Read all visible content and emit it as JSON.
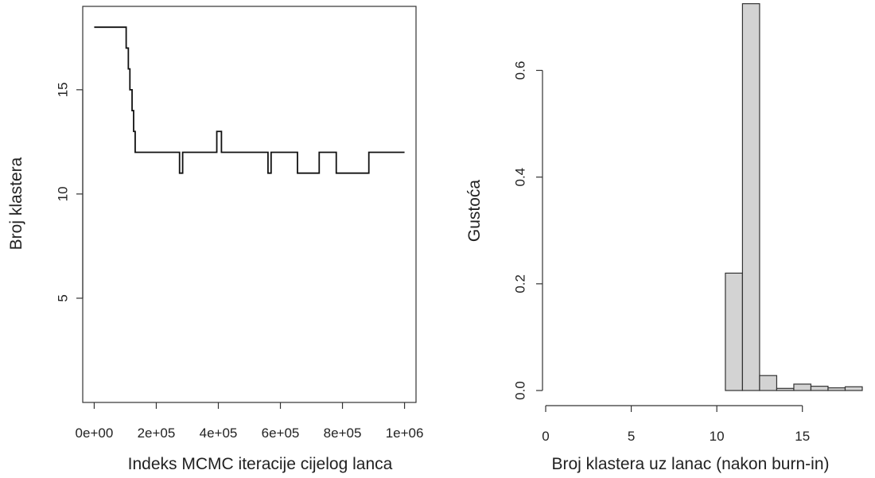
{
  "chart_data": [
    {
      "type": "line",
      "title": "",
      "xlabel": "Indeks MCMC iteracije cijelog lanca",
      "ylabel": "Broj klastera",
      "xlim": [
        -37000,
        1037000
      ],
      "ylim": [
        0,
        19
      ],
      "x_ticks": [
        0,
        200000,
        400000,
        600000,
        800000,
        1000000
      ],
      "x_tick_labels": [
        "0e+00",
        "2e+05",
        "4e+05",
        "6e+05",
        "8e+05",
        "1e+06"
      ],
      "y_ticks": [
        5,
        10,
        15
      ],
      "y_tick_labels": [
        "5",
        "10",
        "15"
      ],
      "box": true,
      "series": [
        {
          "step": true,
          "x": [
            0,
            103000,
            110000,
            115000,
            122000,
            127000,
            132000,
            275000,
            285000,
            395000,
            410000,
            560000,
            570000,
            655000,
            725000,
            780000,
            885000,
            1000000
          ],
          "y": [
            18,
            17,
            16,
            15,
            14,
            13,
            12,
            11,
            12,
            13,
            12,
            11,
            12,
            11,
            12,
            11,
            12,
            12
          ]
        }
      ]
    },
    {
      "type": "bar",
      "subtype": "histogram",
      "title": "",
      "xlabel": "Broj klastera uz lanac (nakon burn-in)",
      "ylabel": "Gustoća",
      "xlim": [
        0,
        18.5
      ],
      "ylim": [
        0,
        0.72
      ],
      "x_ticks": [
        0,
        5,
        10,
        15
      ],
      "x_tick_labels": [
        "0",
        "5",
        "10",
        "15"
      ],
      "y_ticks": [
        0.0,
        0.2,
        0.4,
        0.6
      ],
      "y_tick_labels": [
        "0.0",
        "0.2",
        "0.4",
        "0.6"
      ],
      "bins": [
        {
          "x0": 0.5,
          "x1": 10.5,
          "density": 0.0
        },
        {
          "x0": 10.5,
          "x1": 11.5,
          "density": 0.22
        },
        {
          "x0": 11.5,
          "x1": 12.5,
          "density": 0.725
        },
        {
          "x0": 12.5,
          "x1": 13.5,
          "density": 0.028
        },
        {
          "x0": 13.5,
          "x1": 14.5,
          "density": 0.004
        },
        {
          "x0": 14.5,
          "x1": 15.5,
          "density": 0.012
        },
        {
          "x0": 15.5,
          "x1": 16.5,
          "density": 0.008
        },
        {
          "x0": 16.5,
          "x1": 17.5,
          "density": 0.005
        },
        {
          "x0": 17.5,
          "x1": 18.5,
          "density": 0.007
        }
      ],
      "bar_fill": "#d3d3d3",
      "bar_stroke": "#333333"
    }
  ]
}
